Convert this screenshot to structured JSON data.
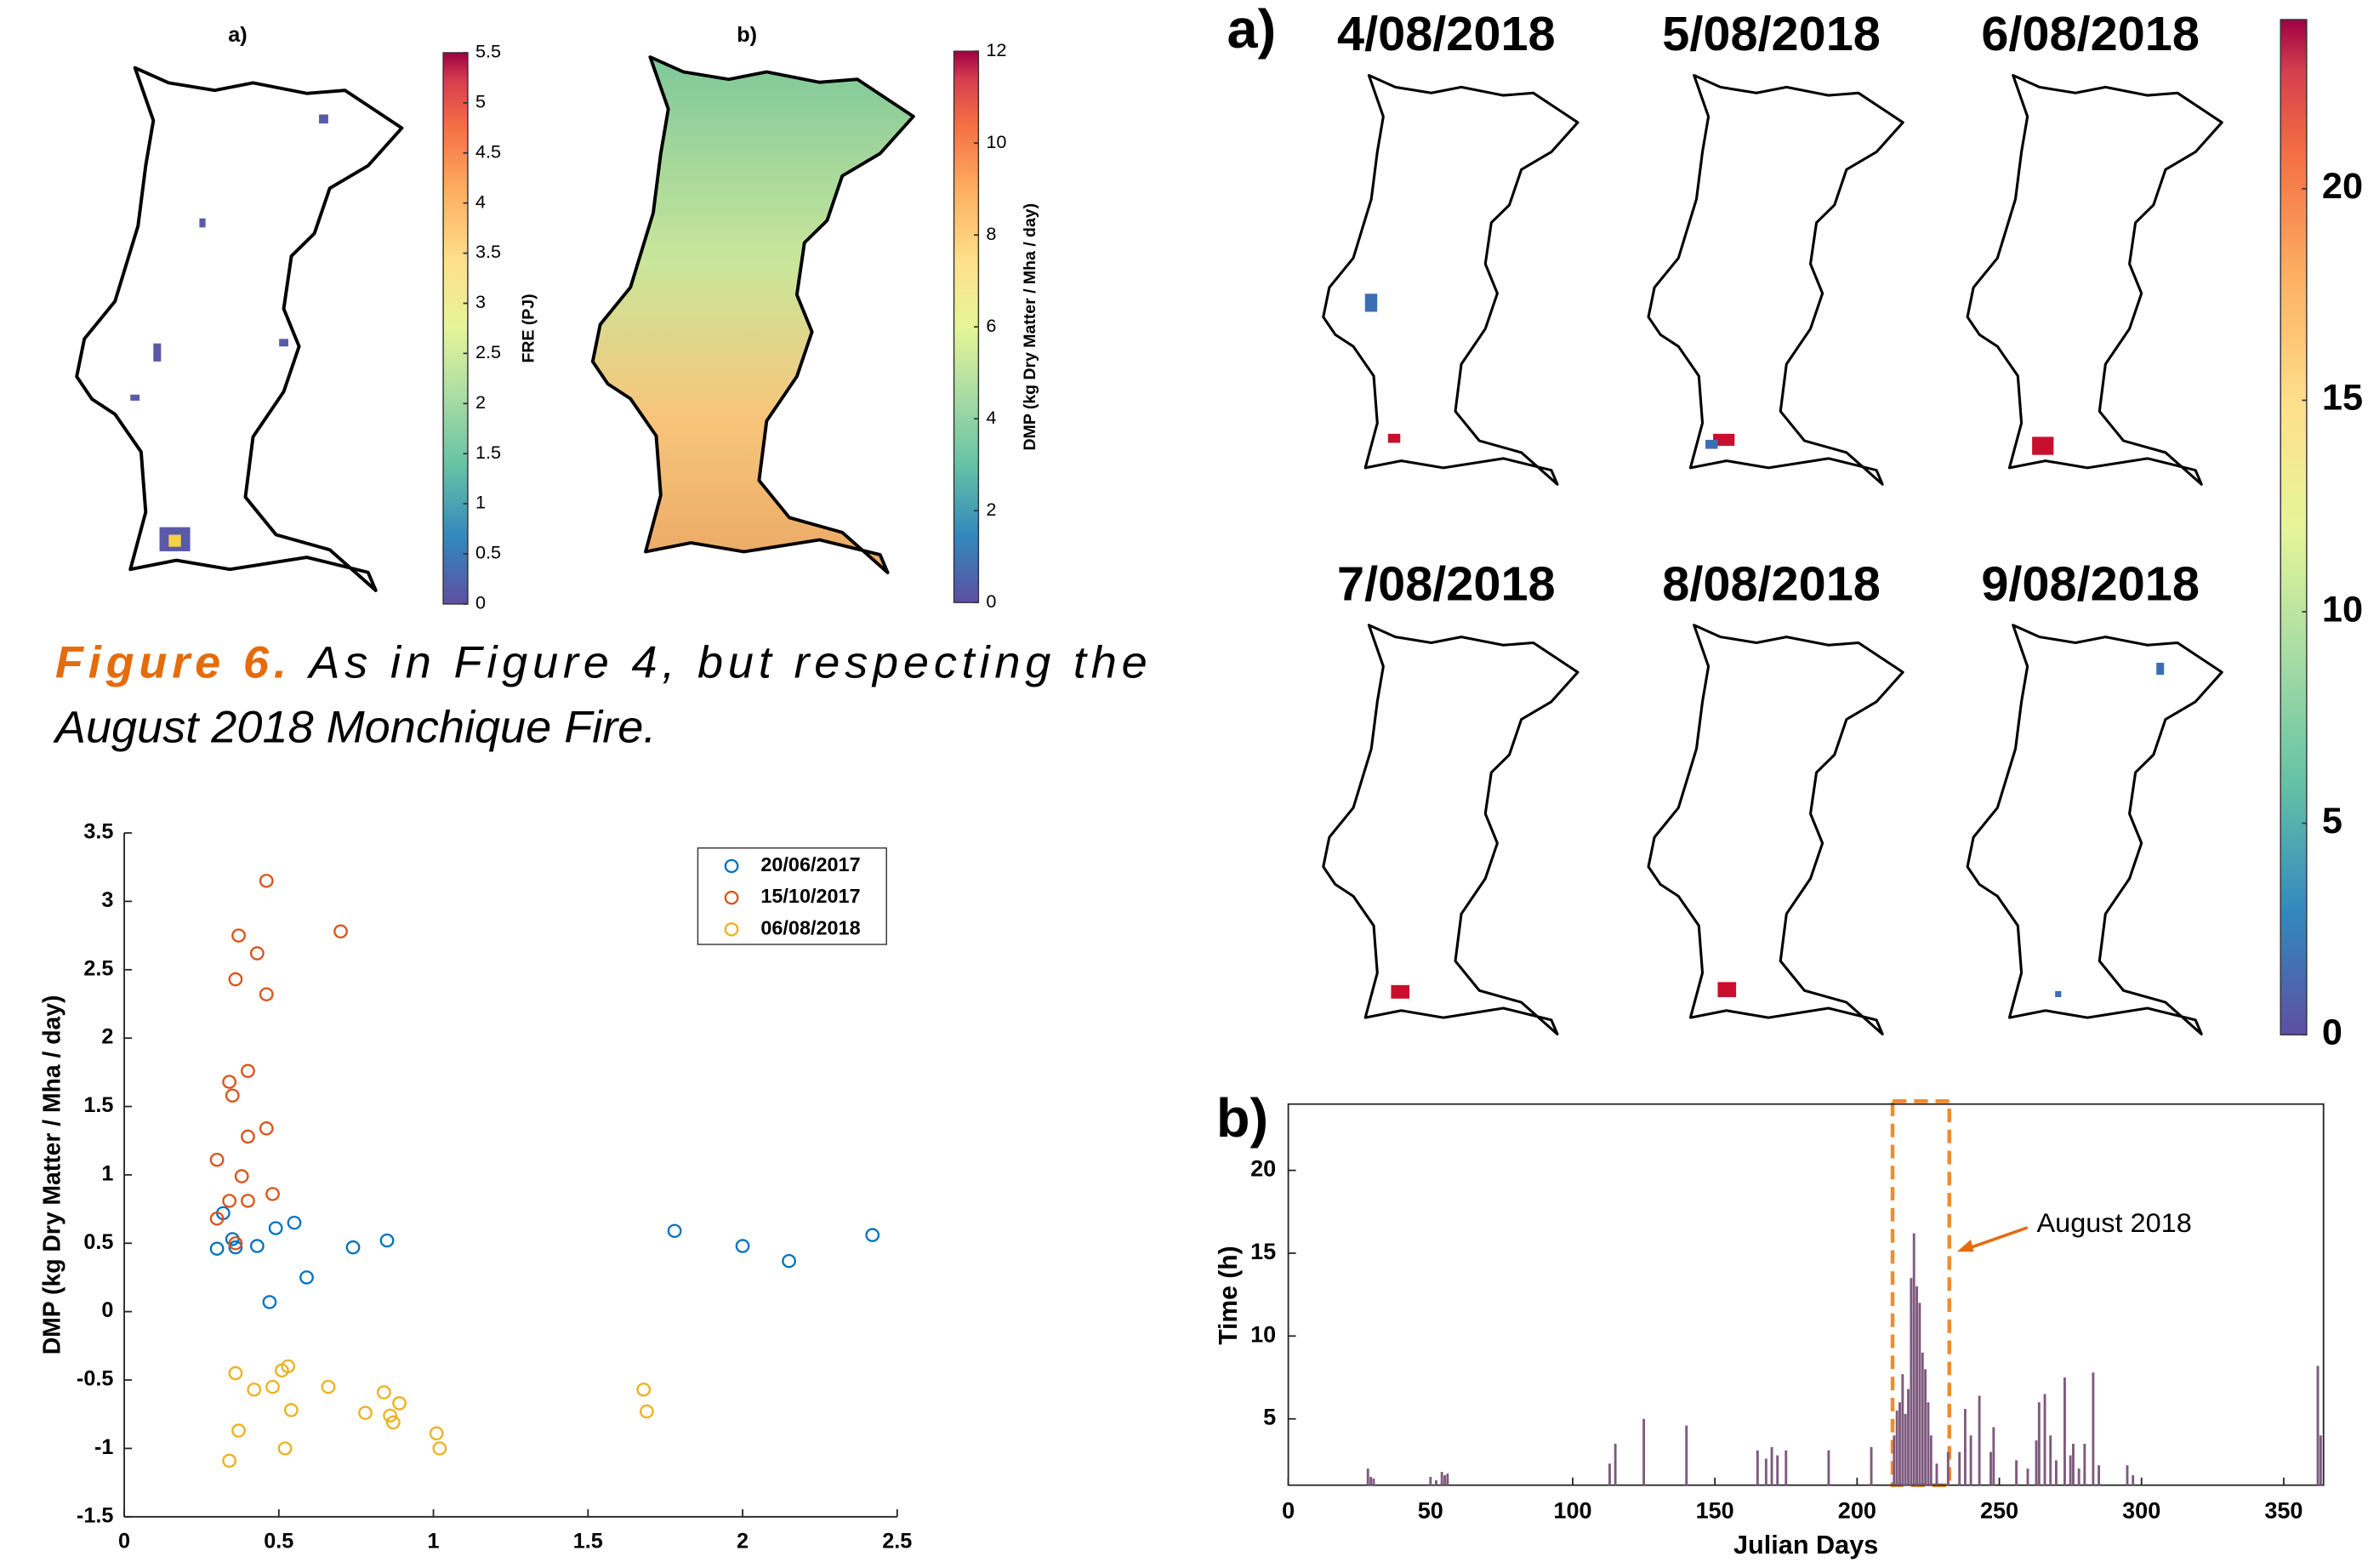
{
  "figure6": {
    "panels": [
      {
        "label": "a)",
        "colorbar": {
          "label": "FRE (PJ)",
          "lim": [
            0,
            5.5
          ],
          "ticks": [
            0,
            0.5,
            1,
            1.5,
            2,
            2.5,
            3,
            3.5,
            4,
            4.5,
            5,
            5.5
          ]
        }
      },
      {
        "label": "b)",
        "colorbar": {
          "label": "DMP (kg Dry Matter / Mha / day)",
          "lim": [
            0,
            12
          ],
          "ticks": [
            0,
            2,
            4,
            6,
            8,
            10,
            12
          ]
        }
      }
    ],
    "caption": {
      "label": "Figure 6.",
      "lines": [
        "As in Figure 4, but respecting the",
        "August 2018 Monchique Fire."
      ]
    }
  },
  "figure_right": {
    "label": "a)",
    "dates": [
      "4/08/2018",
      "5/08/2018",
      "6/08/2018",
      "7/08/2018",
      "8/08/2018",
      "9/08/2018"
    ],
    "colorbar": {
      "lim": [
        0,
        24
      ],
      "ticks": [
        0,
        5,
        10,
        15,
        20
      ]
    }
  },
  "chart_data": [
    {
      "type": "scatter",
      "ylabel": "DMP (kg Dry Matter / Mha / day)",
      "xlim": [
        0,
        2.5
      ],
      "ylim": [
        -1.5,
        3.5
      ],
      "xticks": [
        0,
        0.5,
        1,
        1.5,
        2,
        2.5
      ],
      "yticks": [
        -1.5,
        -1,
        -0.5,
        0,
        0.5,
        1,
        1.5,
        2,
        2.5,
        3,
        3.5
      ],
      "legend": "upper right",
      "series": [
        {
          "name": "20/06/2017",
          "color": "#0072bd",
          "x": [
            0.3,
            0.32,
            0.36,
            0.35,
            0.43,
            0.49,
            0.55,
            0.59,
            0.47,
            0.74,
            0.85,
            1.78,
            2.0,
            2.15,
            2.42
          ],
          "values": [
            0.46,
            0.72,
            0.47,
            0.53,
            0.48,
            0.61,
            0.65,
            0.25,
            0.07,
            0.47,
            0.52,
            0.59,
            0.48,
            0.37,
            0.56
          ]
        },
        {
          "name": "15/10/2017",
          "color": "#d95319",
          "x": [
            0.46,
            0.7,
            0.37,
            0.43,
            0.36,
            0.46,
            0.4,
            0.34,
            0.35,
            0.46,
            0.4,
            0.3,
            0.38,
            0.34,
            0.4,
            0.48,
            0.3,
            0.36
          ],
          "values": [
            3.15,
            2.78,
            2.75,
            2.62,
            2.43,
            2.32,
            1.76,
            1.68,
            1.58,
            1.34,
            1.28,
            1.11,
            0.99,
            0.81,
            0.81,
            0.86,
            0.68,
            0.5
          ]
        },
        {
          "name": "06/08/2018",
          "color": "#edb120",
          "x": [
            0.36,
            0.42,
            0.48,
            0.51,
            0.53,
            0.66,
            0.54,
            0.37,
            0.34,
            0.52,
            0.78,
            0.84,
            0.86,
            0.89,
            0.87,
            1.01,
            1.02,
            1.68,
            1.69
          ],
          "values": [
            -0.45,
            -0.57,
            -0.55,
            -0.43,
            -0.4,
            -0.55,
            -0.72,
            -0.87,
            -1.09,
            -1.0,
            -0.74,
            -0.59,
            -0.76,
            -0.67,
            -0.81,
            -0.89,
            -1.0,
            -0.57,
            -0.73
          ]
        }
      ]
    },
    {
      "type": "bar",
      "panel_label": "b)",
      "xlabel": "Julian Days",
      "ylabel": "Time (h)",
      "annotation": "August 2018",
      "color": "#7e5a7e",
      "xlim": [
        0,
        364
      ],
      "ylim": [
        1,
        24
      ],
      "xticks": [
        0,
        50,
        100,
        150,
        200,
        250,
        300,
        350
      ],
      "yticks": [
        5,
        10,
        15,
        20
      ],
      "x": [
        28,
        29,
        30,
        50,
        52,
        54,
        55,
        56,
        113,
        115,
        125,
        140,
        165,
        168,
        170,
        172,
        175,
        190,
        205,
        213,
        214,
        215,
        216,
        217,
        218,
        219,
        220,
        221,
        222,
        223,
        224,
        225,
        226,
        228,
        232,
        236,
        238,
        240,
        243,
        247,
        248,
        256,
        260,
        263,
        264,
        266,
        268,
        270,
        273,
        275,
        276,
        278,
        280,
        283,
        285,
        295,
        297,
        362,
        363
      ],
      "values": [
        2.0,
        1.5,
        1.4,
        1.5,
        1.3,
        1.8,
        1.6,
        1.7,
        2.3,
        3.5,
        5.0,
        4.6,
        3.1,
        2.6,
        3.3,
        2.8,
        3.1,
        3.1,
        3.3,
        4.0,
        5.5,
        6.0,
        7.7,
        5.3,
        6.8,
        13.5,
        16.2,
        13.0,
        12.0,
        9.0,
        8.0,
        6.0,
        4.0,
        2.3,
        3.0,
        3.0,
        5.6,
        4.0,
        6.4,
        3.0,
        4.5,
        2.5,
        2.0,
        3.7,
        6.0,
        6.5,
        4.0,
        2.5,
        7.5,
        2.8,
        3.5,
        2.0,
        3.5,
        7.8,
        2.2,
        2.2,
        1.6,
        8.2,
        4.0
      ]
    }
  ]
}
